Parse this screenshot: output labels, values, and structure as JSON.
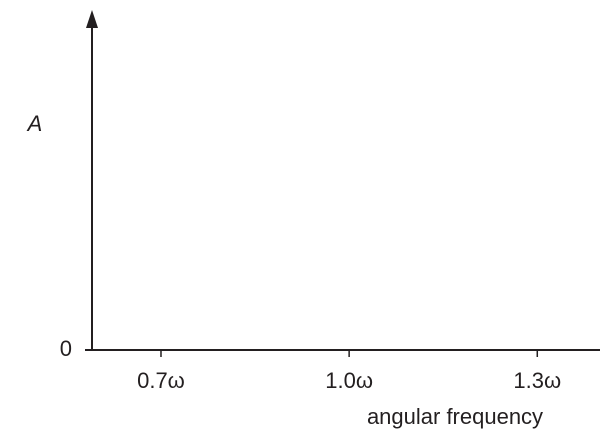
{
  "chart_data": {
    "type": "line",
    "y_label": "A",
    "x_label": "angular frequency",
    "xlim": [
      0.59,
      1.4
    ],
    "xticks": [
      {
        "value": 0.7,
        "label": "0.7ω"
      },
      {
        "value": 1.0,
        "label": "1.0ω"
      },
      {
        "value": 1.3,
        "label": "1.3ω"
      }
    ],
    "ylim": [
      0,
      1
    ],
    "yticks": [
      0
    ],
    "series": []
  }
}
